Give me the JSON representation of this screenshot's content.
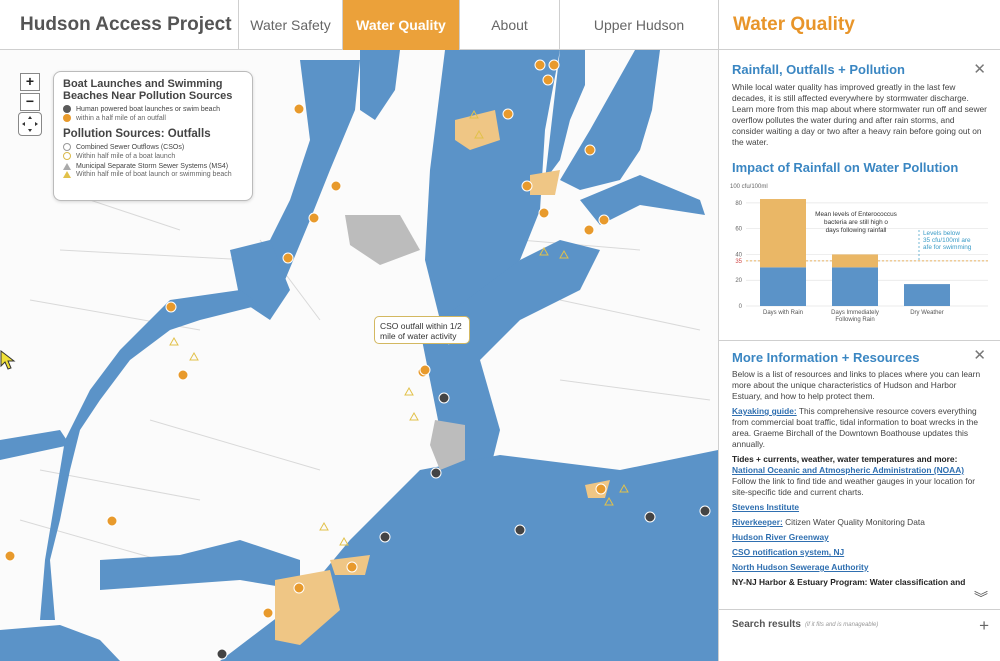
{
  "header": {
    "brand": "Hudson Access Project",
    "tabs": [
      {
        "label": "Water Safety",
        "active": false
      },
      {
        "label": "Water Quality",
        "active": true
      },
      {
        "label": "About",
        "active": false
      },
      {
        "label": "Upper Hudson",
        "active": false
      }
    ]
  },
  "colors": {
    "accent": "#eba13a",
    "water": "#5b93c8",
    "link": "#2f6fb0",
    "heading": "#3a86c2"
  },
  "map": {
    "zoom_in": "+",
    "zoom_out": "−",
    "legend": {
      "title": "Boat Launches and Swimming Beaches Near Pollution Sources",
      "row1": "Human powered boat launches or swim beach",
      "row2": "within a half mile of an outfall",
      "section2": "Pollution Sources: Outfalls",
      "row3": "Combined Sewer Outflows (CSOs)",
      "row4": "Within half mile of a boat launch",
      "row5": "Municipal Separate Storm Sewer Systems (MS4)",
      "row6": "Within half mile of boat launch or swimming beach"
    },
    "tooltip": "CSO outfall within 1/2 mile of water activity"
  },
  "panel": {
    "title": "Water Quality",
    "section1": {
      "heading": "Rainfall, Outfalls + Pollution",
      "body": "While local water quality has improved greatly in the last few decades, it is still affected everywhere by stormwater discharge. Learn more from this map about where stormwater run off and sewer overflow pollutes the water during and after rain storms, and consider waiting a day or two after a heavy rain before going out on the water."
    },
    "section2": {
      "heading": "Impact of Rainfall on Water Pollution"
    },
    "section3": {
      "heading": "More Information + Resources",
      "intro": "Below is a list of resources and links to places where you can learn more about the unique characteristics of Hudson and Harbor Estuary, and how to help protect them.",
      "kayak_link": "Kayaking guide:",
      "kayak_text": " This comprehensive resource covers everything from commercial boat traffic, tidal information to boat wrecks in the area. Graeme Birchall of the Downtown Boathouse updates this annually.",
      "tides_heading": "Tides + currents, weather, water temperatures and more:",
      "noaa_link": "National Oceanic and Atmospheric Administration (NOAA)",
      "noaa_text": "Follow the link to find tide and weather gauges in your location for site-specific tide and current charts.",
      "stevens_link": "Stevens Institute",
      "riverkeeper_link": "Riverkeeper:",
      "riverkeeper_text": " Citizen Water Quality Monitoring Data",
      "greenway_link": "Hudson River Greenway",
      "cso_link": "CSO notification system, NJ",
      "nhsa_link": "North Hudson Sewerage Authority",
      "harbor_text": "NY-NJ Harbor & Estuary Program: Water classification and"
    },
    "search": {
      "label": "Search results",
      "hint": "(if it fits and is manageable)"
    }
  },
  "chart_data": {
    "type": "bar",
    "stacked": true,
    "ylabel": "100 cfu/100ml",
    "ylim": [
      0,
      90
    ],
    "yticks": [
      0,
      20,
      35,
      40,
      60,
      80
    ],
    "categories": [
      "Days with Rain",
      "Days Immediately Following Rain",
      "Dry Weather"
    ],
    "series": [
      {
        "color": "#5b93c8",
        "values": [
          30,
          30,
          17
        ]
      },
      {
        "color": "#eab766",
        "values": [
          53,
          10,
          0
        ]
      }
    ],
    "threshold": 35,
    "annotations": [
      "Mean levels of Enterococcus bacteria are still high on days following rainfall",
      "Levels below 35 cfu/100ml are safe for swimming"
    ]
  }
}
